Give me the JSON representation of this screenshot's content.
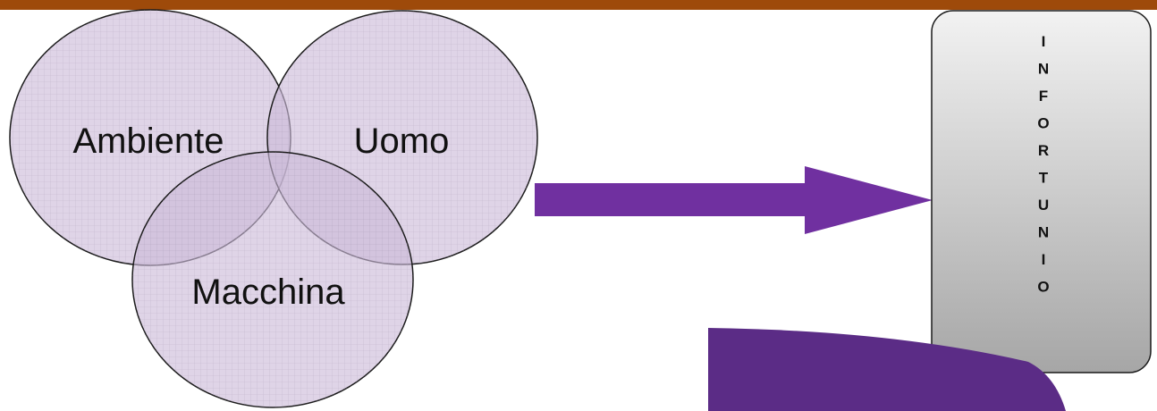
{
  "colors": {
    "top_bar": "#9e4a0a",
    "circle_fill": "#cbbad9",
    "circle_overlap": "#b79fcc",
    "circle_stroke": "#1a1a1a",
    "grid_line": "#a89cb4",
    "arrow": "#7030a0",
    "curved_arrow": "#5b2c86",
    "box_fill_top": "#f2f2f2",
    "box_fill_bottom": "#a6a6a6",
    "box_stroke": "#1a1a1a"
  },
  "circles": {
    "ambiente": {
      "label": "Ambiente"
    },
    "uomo": {
      "label": "Uomo"
    },
    "macchina": {
      "label": "Macchina"
    }
  },
  "box": {
    "letters": [
      "I",
      "N",
      "F",
      "O",
      "R",
      "T",
      "U",
      "N",
      "I",
      "O"
    ]
  },
  "icons": {
    "right_arrow": "right-arrow-icon",
    "curved_arrow": "curved-arrow-icon"
  }
}
